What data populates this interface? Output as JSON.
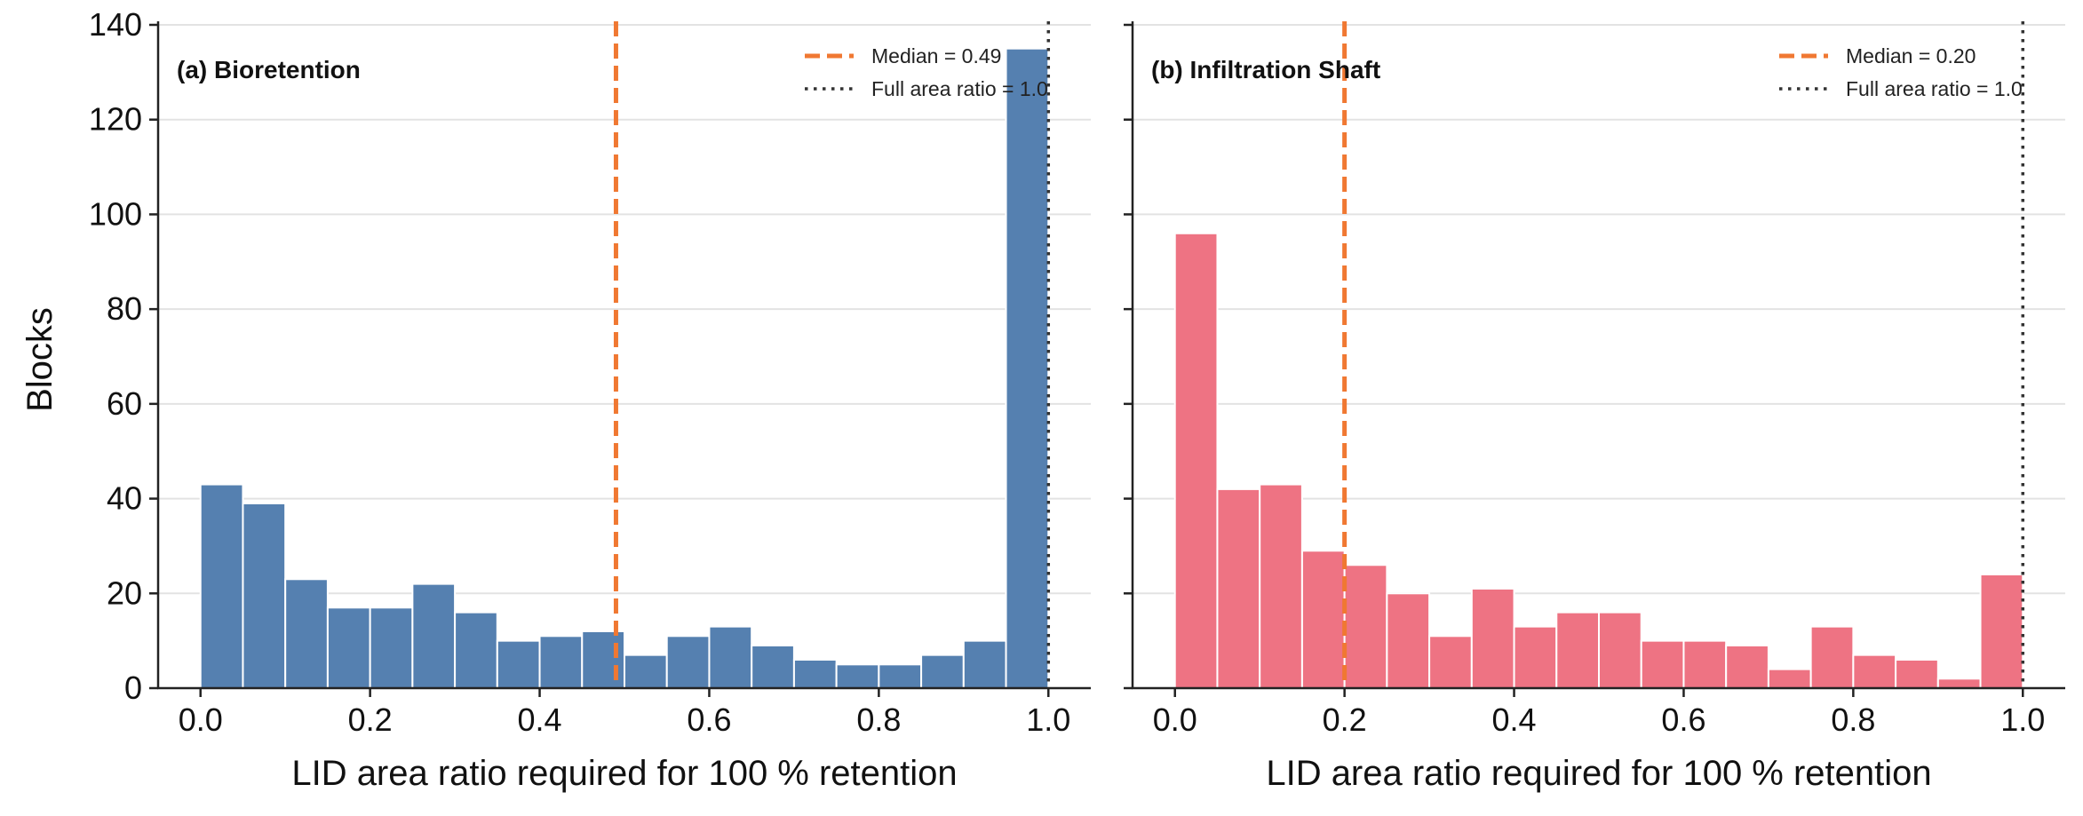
{
  "figure": {
    "ylabel": "Blocks"
  },
  "chart_data": [
    {
      "type": "bar",
      "title": "(a) Bioretention",
      "xlabel": "LID area ratio required for 100 % retention",
      "ylabel": "Blocks",
      "xlim": [
        -0.05,
        1.05
      ],
      "ylim": [
        0,
        140
      ],
      "xticks": [
        0.0,
        0.2,
        0.4,
        0.6,
        0.8,
        1.0
      ],
      "xtick_labels": [
        "0.0",
        "0.2",
        "0.4",
        "0.6",
        "0.8",
        "1.0"
      ],
      "yticks": [
        0,
        20,
        40,
        60,
        80,
        100,
        120,
        140
      ],
      "ytick_labels": [
        "0",
        "20",
        "40",
        "60",
        "80",
        "100",
        "120",
        "140"
      ],
      "grid": "horizontal",
      "legend_position": "top-right",
      "bar_color": "#5580b0",
      "bin_edges": [
        0.0,
        0.05,
        0.1,
        0.15,
        0.2,
        0.25,
        0.3,
        0.35,
        0.4,
        0.45,
        0.5,
        0.55,
        0.6,
        0.65,
        0.7,
        0.75,
        0.8,
        0.85,
        0.9,
        0.95,
        1.0
      ],
      "values": [
        43,
        39,
        23,
        17,
        17,
        22,
        16,
        10,
        11,
        12,
        7,
        11,
        13,
        9,
        6,
        5,
        5,
        7,
        10,
        135
      ],
      "lines": [
        {
          "label": "Median = 0.49",
          "value": 0.49,
          "style": "dashed",
          "color": "#f07832"
        },
        {
          "label": "Full area ratio = 1.0",
          "value": 1.0,
          "style": "dotted",
          "color": "#333333"
        }
      ]
    },
    {
      "type": "bar",
      "title": "(b) Infiltration Shaft",
      "xlabel": "LID area ratio required for 100 % retention",
      "ylabel": "",
      "xlim": [
        -0.05,
        1.05
      ],
      "ylim": [
        0,
        140
      ],
      "xticks": [
        0.0,
        0.2,
        0.4,
        0.6,
        0.8,
        1.0
      ],
      "xtick_labels": [
        "0.0",
        "0.2",
        "0.4",
        "0.6",
        "0.8",
        "1.0"
      ],
      "yticks": [
        0,
        20,
        40,
        60,
        80,
        100,
        120,
        140
      ],
      "ytick_labels": [],
      "grid": "horizontal",
      "legend_position": "top-right",
      "bar_color": "#ee7383",
      "bin_edges": [
        0.0,
        0.05,
        0.1,
        0.15,
        0.2,
        0.25,
        0.3,
        0.35,
        0.4,
        0.45,
        0.5,
        0.55,
        0.6,
        0.65,
        0.7,
        0.75,
        0.8,
        0.85,
        0.9,
        0.95,
        1.0
      ],
      "values": [
        96,
        42,
        43,
        29,
        26,
        20,
        11,
        21,
        13,
        16,
        16,
        10,
        10,
        9,
        4,
        13,
        7,
        6,
        2,
        24
      ],
      "lines": [
        {
          "label": "Median = 0.20",
          "value": 0.2,
          "style": "dashed",
          "color": "#f07832"
        },
        {
          "label": "Full area ratio = 1.0",
          "value": 1.0,
          "style": "dotted",
          "color": "#333333"
        }
      ]
    }
  ]
}
